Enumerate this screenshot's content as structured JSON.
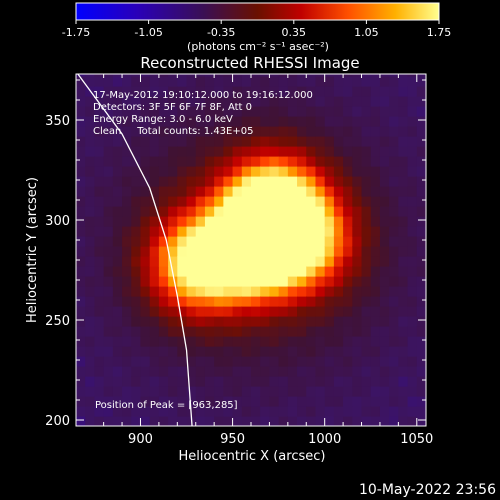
{
  "chart_data": {
    "type": "heatmap",
    "title": "Reconstructed RHESSI Image",
    "xlabel": "Heliocentric X (arcsec)",
    "ylabel": "Heliocentric Y (arcsec)",
    "xlim": [
      865,
      1055
    ],
    "ylim": [
      197,
      373
    ],
    "x_ticks": [
      900,
      950,
      1000,
      1050
    ],
    "y_ticks": [
      200,
      250,
      300,
      350
    ],
    "colorbar": {
      "range": [
        -1.75,
        1.75
      ],
      "ticks": [
        "-1.75",
        "-1.05",
        "-0.35",
        "0.35",
        "1.05",
        "1.75"
      ],
      "unit_label": "(photons cm⁻² s⁻¹ asec⁻²)"
    },
    "annotations": {
      "time": "17-May-2012 19:10:12.000 to 19:16:12.000",
      "detectors": "Detectors: 3F 5F 6F 7F 8F, Att 0",
      "energy": "Energy Range: 3.0 - 6.0 keV",
      "clean": "Clean     Total counts: 1.43E+05",
      "peak": "Position of Peak = [963,285]"
    },
    "sources": [
      {
        "x": 930,
        "y": 278,
        "peak": 1.5
      },
      {
        "x": 962,
        "y": 286,
        "peak": 1.75
      },
      {
        "x": 972,
        "y": 309,
        "peak": 1.6
      },
      {
        "x": 990,
        "y": 290,
        "peak": 1.2
      }
    ],
    "background_level": -0.9,
    "limb": [
      [
        866,
        373
      ],
      [
        890,
        343
      ],
      [
        905,
        316
      ],
      [
        914,
        290
      ],
      [
        920,
        262
      ],
      [
        925,
        235
      ],
      [
        928,
        197
      ]
    ]
  },
  "footer": {
    "timestamp": "10-May-2022 23:56"
  }
}
